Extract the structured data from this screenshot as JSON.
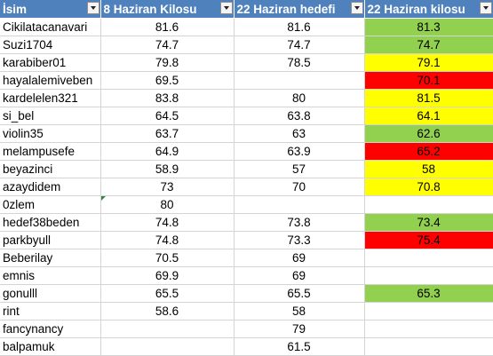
{
  "headers": {
    "name": "İsim",
    "col1": "8 Haziran Kilosu",
    "col2": "22 Haziran hedefi",
    "col3": "22 Haziran kilosu"
  },
  "colors": {
    "header_bg": "#4f81bd",
    "green": "#92d050",
    "yellow": "#ffff00",
    "red": "#ff0000"
  },
  "rows": [
    {
      "name": "Cikilatacanavari",
      "kilo8": "81.6",
      "hedef": "81.6",
      "kilo22": "81.3",
      "highlight": "green"
    },
    {
      "name": "Suzi1704",
      "kilo8": "74.7",
      "hedef": "74.7",
      "kilo22": "74.7",
      "highlight": "green"
    },
    {
      "name": "karabiber01",
      "kilo8": "79.8",
      "hedef": "78.5",
      "kilo22": "79.1",
      "highlight": "yellow"
    },
    {
      "name": "hayalalemiveben",
      "kilo8": "69.5",
      "hedef": "",
      "kilo22": "70.1",
      "highlight": "red"
    },
    {
      "name": "kardelelen321",
      "kilo8": "83.8",
      "hedef": "80",
      "kilo22": "81.5",
      "highlight": "yellow"
    },
    {
      "name": "si_bel",
      "kilo8": "64.5",
      "hedef": "63.8",
      "kilo22": "64.1",
      "highlight": "yellow"
    },
    {
      "name": "violin35",
      "kilo8": "63.7",
      "hedef": "63",
      "kilo22": "62.6",
      "highlight": "green"
    },
    {
      "name": "melampusefe",
      "kilo8": "64.9",
      "hedef": "63.9",
      "kilo22": "65.2",
      "highlight": "red"
    },
    {
      "name": "beyazinci",
      "kilo8": "58.9",
      "hedef": "57",
      "kilo22": "58",
      "highlight": "yellow"
    },
    {
      "name": "azaydidem",
      "kilo8": "73",
      "hedef": "70",
      "kilo22": "70.8",
      "highlight": "yellow"
    },
    {
      "name": "0zlem",
      "kilo8": "80",
      "hedef": "",
      "kilo22": "",
      "highlight": "",
      "comment_marker": true
    },
    {
      "name": "hedef38beden",
      "kilo8": "74.8",
      "hedef": "73.8",
      "kilo22": "73.4",
      "highlight": "green"
    },
    {
      "name": "parkbyull",
      "kilo8": "74.8",
      "hedef": "73.3",
      "kilo22": "75.4",
      "highlight": "red"
    },
    {
      "name": "Beberilay",
      "kilo8": "70.5",
      "hedef": "69",
      "kilo22": "",
      "highlight": ""
    },
    {
      "name": "emnis",
      "kilo8": "69.9",
      "hedef": "69",
      "kilo22": "",
      "highlight": ""
    },
    {
      "name": "gonulll",
      "kilo8": "65.5",
      "hedef": "65.5",
      "kilo22": "65.3",
      "highlight": "green"
    },
    {
      "name": "rint",
      "kilo8": "58.6",
      "hedef": "58",
      "kilo22": "",
      "highlight": ""
    },
    {
      "name": "fancynancy",
      "kilo8": "",
      "hedef": "79",
      "kilo22": "",
      "highlight": ""
    },
    {
      "name": "balpamuk",
      "kilo8": "",
      "hedef": "61.5",
      "kilo22": "",
      "highlight": ""
    }
  ]
}
